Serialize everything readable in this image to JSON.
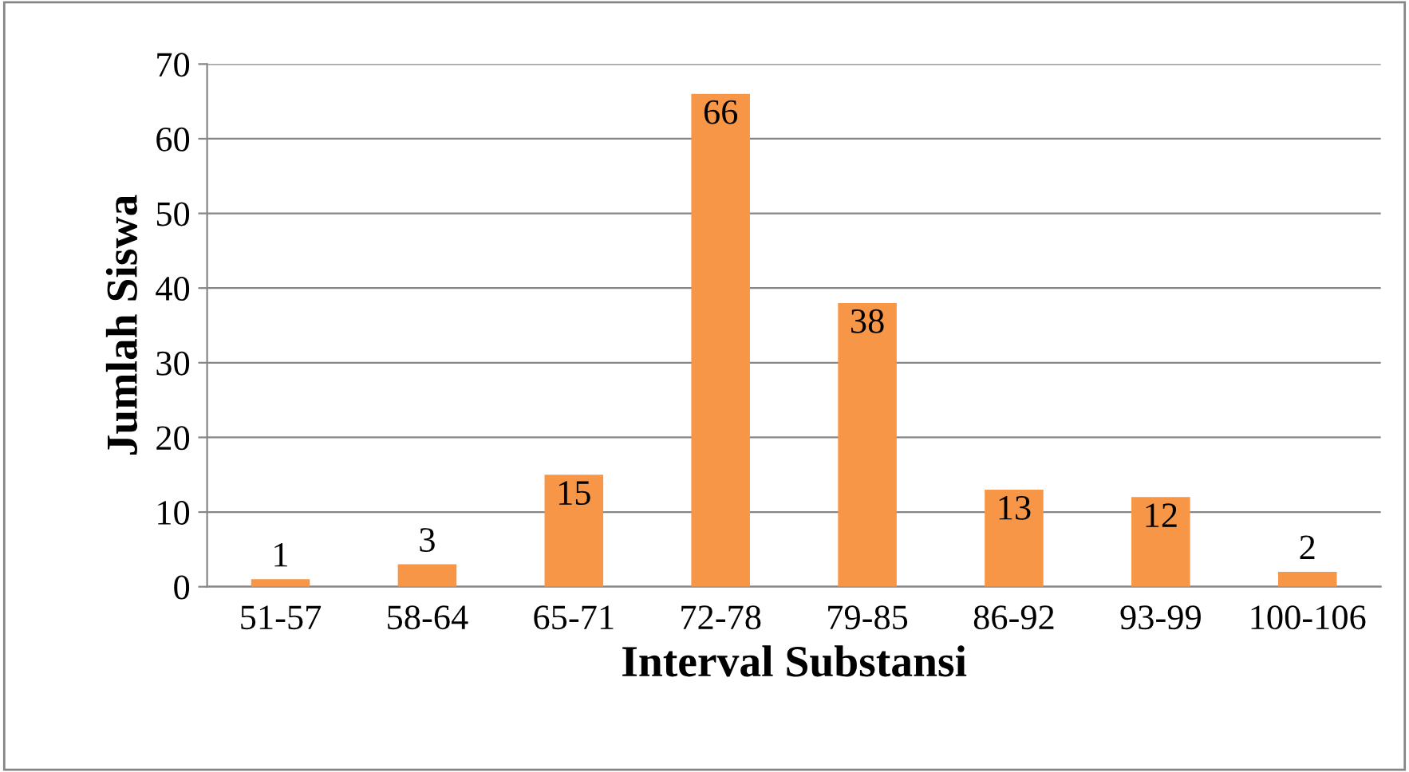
{
  "chart_data": {
    "type": "bar",
    "xlabel": "Interval Substansi",
    "ylabel": "Jumlah Siswa",
    "categories": [
      "51-57",
      "58-64",
      "65-71",
      "72-78",
      "79-85",
      "86-92",
      "93-99",
      "100-106"
    ],
    "values": [
      1,
      3,
      15,
      66,
      38,
      13,
      12,
      2
    ],
    "color": "#f79646",
    "ylim": [
      0,
      70
    ],
    "yticks": [
      0,
      10,
      20,
      30,
      40,
      50,
      60,
      70
    ],
    "grid": "y",
    "data_labels": true
  }
}
